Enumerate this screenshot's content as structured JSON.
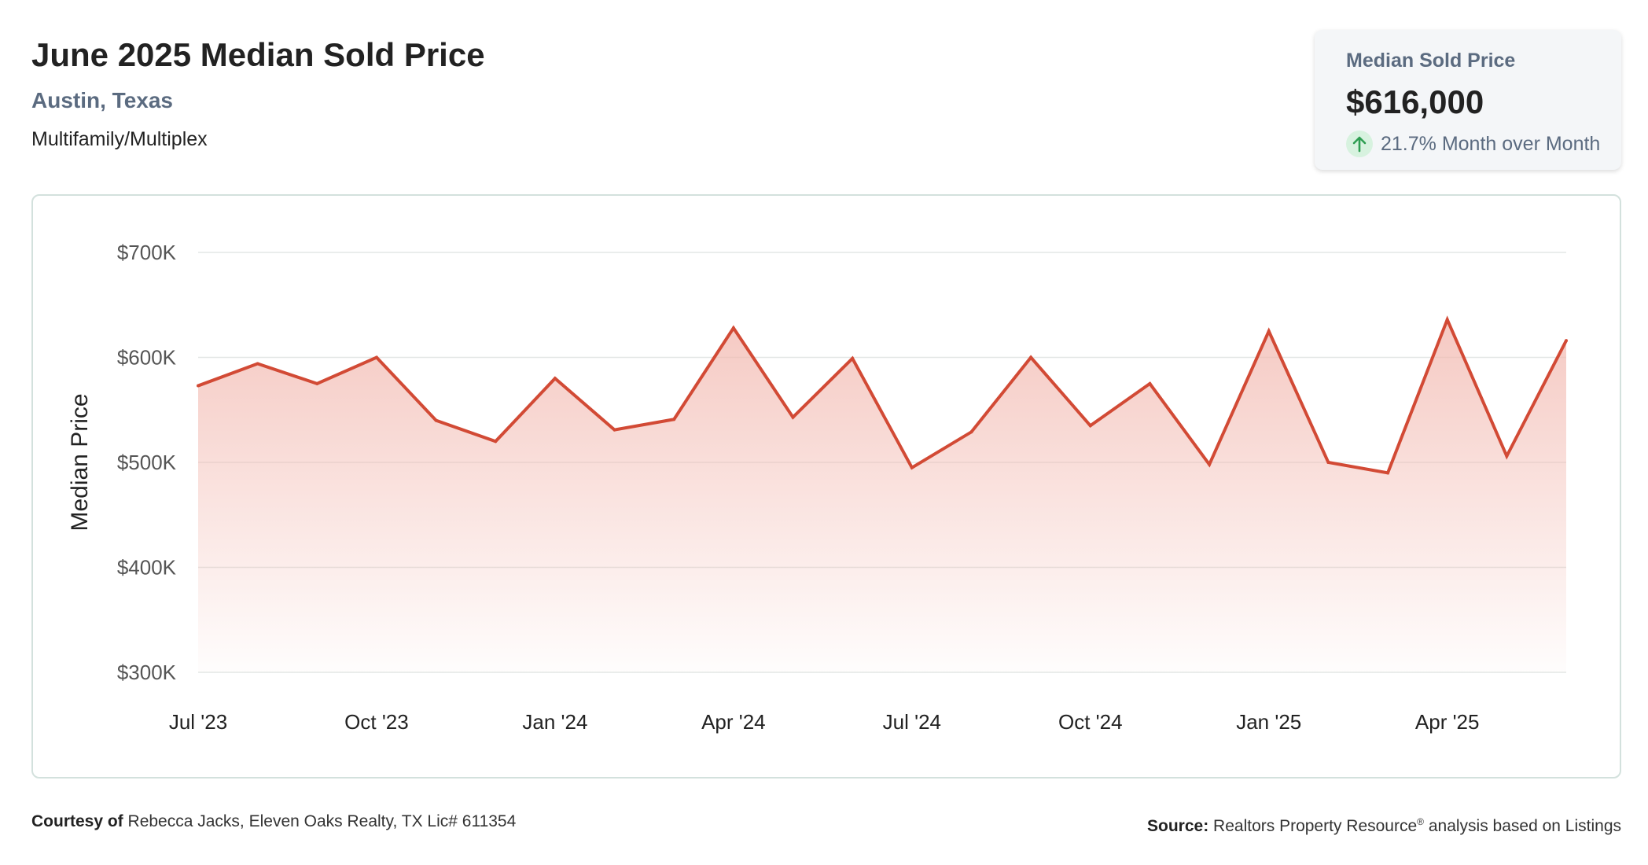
{
  "header": {
    "title": "June 2025 Median Sold Price",
    "location": "Austin, Texas",
    "property_type": "Multifamily/Multiplex"
  },
  "stat_card": {
    "label": "Median Sold Price",
    "value": "$616,000",
    "change": "21.7% Month over Month",
    "change_icon": "arrow-up-icon",
    "change_color": "#2e9e52"
  },
  "footer": {
    "courtesy_label": "Courtesy of",
    "courtesy_text": "Rebecca Jacks, Eleven Oaks Realty, TX Lic# 611354",
    "source_label": "Source:",
    "source_text": "Realtors Property Resource",
    "source_mark": "®",
    "source_suffix": "analysis based on Listings"
  },
  "chart_data": {
    "type": "area",
    "title": "",
    "xlabel": "",
    "ylabel": "Median Price",
    "x": [
      "2023-07",
      "2023-08",
      "2023-09",
      "2023-10",
      "2023-11",
      "2023-12",
      "2024-01",
      "2024-02",
      "2024-03",
      "2024-04",
      "2024-05",
      "2024-06",
      "2024-07",
      "2024-08",
      "2024-09",
      "2024-10",
      "2024-11",
      "2024-12",
      "2025-01",
      "2025-02",
      "2025-03",
      "2025-04",
      "2025-05",
      "2025-06"
    ],
    "series": [
      {
        "values": [
          573000,
          594000,
          575000,
          600000,
          540000,
          520000,
          580000,
          531000,
          541000,
          628000,
          543000,
          599000,
          495000,
          529000,
          600000,
          535000,
          575000,
          498000,
          625000,
          500000,
          490000,
          636000,
          506000,
          616000
        ]
      }
    ],
    "x_ticks": [
      "Jul '23",
      "Oct '23",
      "Jan '24",
      "Apr '24",
      "Jul '24",
      "Oct '24",
      "Jan '25",
      "Apr '25"
    ],
    "x_tick_indices": [
      0,
      3,
      6,
      9,
      12,
      15,
      18,
      21
    ],
    "y_ticks": [
      300000,
      400000,
      500000,
      600000,
      700000
    ],
    "y_tick_labels": [
      "$300K",
      "$400K",
      "$500K",
      "$600K",
      "$700K"
    ],
    "ylim": [
      300000,
      700000
    ],
    "grid": true,
    "legend": "none",
    "line_color": "#d24a35",
    "fill_color": "#f2b7ae"
  }
}
